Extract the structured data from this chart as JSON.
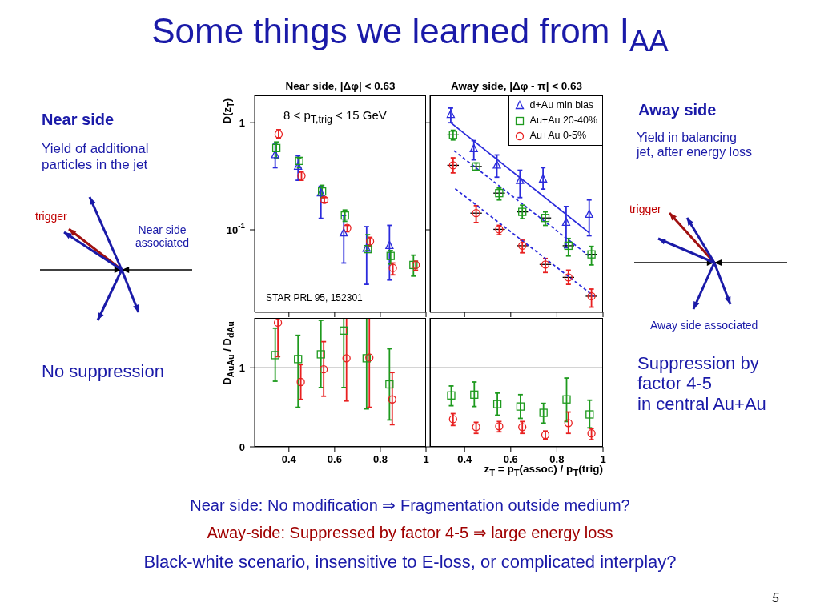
{
  "chart_data": [
    {
      "type": "other",
      "title": "Some things we learned from I$_{AA}$",
      "annotations": [
        "Near side",
        "Yield of additional\nparticles in the jet",
        "trigger",
        "Near side\nassociated",
        "No suppression",
        "Away side",
        "Yield in balancing\njet,  after energy loss",
        "trigger",
        "Away side associated",
        "Suppression by\nfactor 4-5\nin central Au+Au",
        "Near side: No modification ⇒ Fragmentation outside medium?",
        "Away-side: Suppressed by factor 4-5 ⇒ large energy loss",
        "Black-white scenario, insensitive to E-loss, or complicated interplay?",
        "5"
      ]
    },
    {
      "type": "scatter",
      "title": "Near side, |Δφ| < 0.63",
      "ylabel": "D(z$_{T}$)",
      "log": "y",
      "xlim": [
        0.25,
        1
      ],
      "xticks": [
        0.4,
        0.6,
        0.8,
        1
      ],
      "ylim": [
        0.017,
        1.8
      ],
      "yticks": [
        1,
        {
          "value": 0.1,
          "label": "10$^{-1}$"
        }
      ],
      "tick_labels": "y",
      "annotations": [
        "8 < p$_{T,trig}$ < 15 GeV",
        "STAR PRL 95, 152301"
      ],
      "series": [
        {
          "color": "#2b2bdc",
          "marker": "triangle",
          "x": [
            0.34,
            0.44,
            0.54,
            0.64,
            0.74,
            0.84
          ],
          "values": [
            0.5,
            0.39,
            0.22,
            0.093,
            0.067,
            0.071
          ],
          "errors": [
            [
              0.38,
              0.63
            ],
            [
              0.29,
              0.49
            ],
            [
              0.128,
              0.255
            ],
            [
              0.049,
              0.136
            ],
            [
              0.031,
              0.107
            ],
            [
              0.034,
              0.11
            ]
          ]
        },
        {
          "color": "#1e9a1e",
          "marker": "square",
          "x": [
            0.345,
            0.445,
            0.545,
            0.645,
            0.745,
            0.845,
            0.945
          ],
          "values": [
            0.58,
            0.44,
            0.228,
            0.136,
            0.066,
            0.057,
            0.047
          ],
          "errors": [
            [
              0.47,
              0.66
            ],
            [
              0.38,
              0.47
            ],
            [
              0.2,
              0.26
            ],
            [
              0.12,
              0.153
            ],
            [
              0.064,
              0.09
            ],
            [
              0.048,
              0.064
            ],
            [
              0.037,
              0.058
            ]
          ]
        },
        {
          "color": "#e82020",
          "marker": "circle",
          "x": [
            0.355,
            0.455,
            0.555,
            0.655,
            0.755,
            0.855,
            0.955
          ],
          "values": [
            0.78,
            0.32,
            0.19,
            0.104,
            0.078,
            0.044,
            0.047
          ],
          "errors": [
            [
              0.72,
              0.86
            ],
            [
              0.29,
              0.35
            ],
            [
              0.18,
              0.2
            ],
            [
              0.096,
              0.11
            ],
            [
              0.07,
              0.085
            ],
            [
              0.038,
              0.049
            ],
            [
              0.042,
              0.051
            ]
          ]
        }
      ]
    },
    {
      "type": "scatter",
      "title": "Away side, |Δφ - π| < 0.63",
      "log": "y",
      "xlim": [
        0.25,
        1
      ],
      "xticks": [
        0.4,
        0.6,
        0.8,
        1
      ],
      "ylim": [
        0.017,
        1.8
      ],
      "yticks": [
        1,
        0.1
      ],
      "tick_labels": false,
      "legend": "top right",
      "series": [
        {
          "name": "d+Au min bias",
          "color": "#2b2bdc",
          "marker": "triangle",
          "x": [
            0.34,
            0.44,
            0.54,
            0.64,
            0.74,
            0.84,
            0.94
          ],
          "values": [
            1.19,
            0.57,
            0.4,
            0.287,
            0.297,
            0.117,
            0.139
          ],
          "errors": [
            [
              1.0,
              1.37
            ],
            [
              0.45,
              0.68
            ],
            [
              0.31,
              0.5
            ],
            [
              0.2,
              0.36
            ],
            [
              0.24,
              0.38
            ],
            [
              0.068,
              0.165
            ],
            [
              0.088,
              0.19
            ]
          ]
        },
        {
          "name": "Au+Au 20-40%",
          "color": "#1e9a1e",
          "marker": "square",
          "x": [
            0.35,
            0.45,
            0.55,
            0.65,
            0.75,
            0.85,
            0.95
          ],
          "values": [
            0.77,
            0.39,
            0.22,
            0.147,
            0.129,
            0.071,
            0.059
          ],
          "errors": [
            [
              0.69,
              0.85
            ],
            [
              0.36,
              0.42
            ],
            [
              0.19,
              0.245
            ],
            [
              0.127,
              0.17
            ],
            [
              0.11,
              0.147
            ],
            [
              0.057,
              0.083
            ],
            [
              0.047,
              0.07
            ]
          ],
          "xerrors": [
            0.025,
            0.025,
            0.025,
            0.025,
            0.025,
            0.025,
            0.025
          ]
        },
        {
          "name": "Au+Au 0-5%",
          "color": "#e82020",
          "marker": "circle",
          "x": [
            0.35,
            0.45,
            0.55,
            0.65,
            0.75,
            0.85,
            0.95
          ],
          "values": [
            0.4,
            0.143,
            0.101,
            0.071,
            0.0475,
            0.036,
            0.024
          ],
          "errors": [
            [
              0.34,
              0.47
            ],
            [
              0.117,
              0.168
            ],
            [
              0.09,
              0.11
            ],
            [
              0.061,
              0.08
            ],
            [
              0.04,
              0.054
            ],
            [
              0.031,
              0.042
            ],
            [
              0.019,
              0.028
            ]
          ],
          "xerrors": [
            0.025,
            0.025,
            0.025,
            0.025,
            0.025,
            0.025,
            0.025
          ]
        },
        {
          "type": "line",
          "color": "#2b2bdc",
          "line_style": "solid",
          "x": [
            0.34,
            0.94
          ],
          "values": [
            1.0,
            0.094
          ]
        },
        {
          "type": "line",
          "color": "#2b2bdc",
          "line_style": "dashed",
          "x": [
            0.354,
            0.949
          ],
          "values": [
            0.548,
            0.055
          ]
        },
        {
          "type": "line",
          "color": "#2b2bdc",
          "line_style": "dashed",
          "x": [
            0.359,
            0.961
          ],
          "values": [
            0.242,
            0.024
          ]
        }
      ]
    },
    {
      "type": "scatter",
      "ylabel": "D$_{AuAu}$ / D$_{dAu}$",
      "xlim": [
        0.25,
        1
      ],
      "xticks": [
        0.4,
        0.6,
        0.8,
        1
      ],
      "ylim": [
        0,
        1.63
      ],
      "yticks": [
        0,
        1
      ],
      "ref_lines": [
        {
          "axis": "y",
          "value": 1,
          "color": "#555555"
        }
      ],
      "series": [
        {
          "color": "#1e9a1e",
          "marker": "square",
          "x": [
            0.34,
            0.44,
            0.54,
            0.64,
            0.74,
            0.84
          ],
          "values": [
            1.16,
            1.11,
            1.17,
            1.47,
            1.12,
            0.79
          ],
          "errors": [
            [
              0.83,
              1.5
            ],
            [
              0.5,
              1.41
            ],
            [
              0.75,
              1.6
            ],
            [
              0.75,
              1.63
            ],
            [
              0.48,
              1.63
            ],
            [
              0.34,
              1.24
            ]
          ]
        },
        {
          "color": "#e82020",
          "marker": "circle",
          "x": [
            0.352,
            0.452,
            0.552,
            0.652,
            0.752,
            0.852
          ],
          "values": [
            1.57,
            0.82,
            0.98,
            1.12,
            1.13,
            0.6
          ],
          "errors": [
            [
              1.14,
              1.63
            ],
            [
              0.6,
              1.04
            ],
            [
              0.64,
              1.33
            ],
            [
              0.58,
              1.63
            ],
            [
              0.5,
              1.63
            ],
            [
              0.28,
              0.94
            ]
          ]
        }
      ]
    },
    {
      "type": "scatter",
      "xlabel": "z$_{T}$ = p$_{T}$(assoc) / p$_{T}$(trig)",
      "xlim": [
        0.25,
        1
      ],
      "xticks": [
        0.4,
        0.6,
        0.8,
        1
      ],
      "ylim": [
        0,
        1.63
      ],
      "yticks": [
        0,
        1
      ],
      "tick_labels": "x",
      "ref_lines": [
        {
          "axis": "y",
          "value": 1,
          "color": "#555555"
        }
      ],
      "series": [
        {
          "color": "#1e9a1e",
          "marker": "square",
          "x": [
            0.342,
            0.442,
            0.542,
            0.642,
            0.742,
            0.842,
            0.942
          ],
          "values": [
            0.65,
            0.66,
            0.54,
            0.51,
            0.43,
            0.6,
            0.41
          ],
          "errors": [
            [
              0.52,
              0.77
            ],
            [
              0.51,
              0.82
            ],
            [
              0.4,
              0.68
            ],
            [
              0.36,
              0.66
            ],
            [
              0.3,
              0.55
            ],
            [
              0.32,
              0.87
            ],
            [
              0.24,
              0.59
            ]
          ]
        },
        {
          "color": "#e82020",
          "marker": "circle",
          "x": [
            0.35,
            0.45,
            0.55,
            0.65,
            0.75,
            0.85,
            0.95
          ],
          "values": [
            0.35,
            0.25,
            0.26,
            0.25,
            0.15,
            0.3,
            0.17
          ],
          "errors": [
            [
              0.27,
              0.42
            ],
            [
              0.17,
              0.31
            ],
            [
              0.19,
              0.32
            ],
            [
              0.17,
              0.32
            ],
            [
              0.1,
              0.2
            ],
            [
              0.17,
              0.44
            ],
            [
              0.09,
              0.23
            ]
          ]
        }
      ]
    }
  ]
}
